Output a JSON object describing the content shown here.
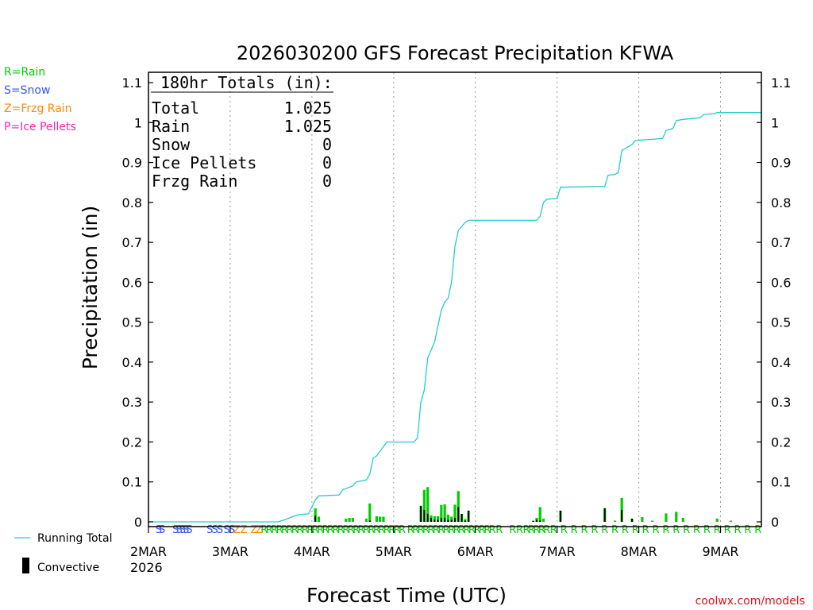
{
  "chart_data": {
    "type": "bar",
    "title": "2026030200 GFS Forecast Precipitation KFWA",
    "ylabel": "Precipitation (in)",
    "xlabel": "Forecast Time (UTC)",
    "x_unit": "hours after 2026-03-02 00Z",
    "xlim": [
      0,
      180
    ],
    "ylim": [
      0,
      1.1
    ],
    "yticks": [
      "0",
      "0.1",
      "0.2",
      "0.3",
      "0.4",
      "0.5",
      "0.6",
      "0.7",
      "0.8",
      "0.9",
      "1",
      "1.1"
    ],
    "xticks": [
      {
        "hour": 0,
        "label": "2MAR"
      },
      {
        "hour": 24,
        "label": "3MAR"
      },
      {
        "hour": 48,
        "label": "4MAR"
      },
      {
        "hour": 72,
        "label": "5MAR"
      },
      {
        "hour": 96,
        "label": "6MAR"
      },
      {
        "hour": 120,
        "label": "7MAR"
      },
      {
        "hour": 144,
        "label": "8MAR"
      },
      {
        "hour": 168,
        "label": "9MAR"
      }
    ],
    "year_label": "2026",
    "legend": [
      {
        "label": "R=Rain",
        "color": "#00cc00"
      },
      {
        "label": "S=Snow",
        "color": "#3355ff"
      },
      {
        "label": "Z=Frzg Rain",
        "color": "#ff8800"
      },
      {
        "label": "P=Ice Pellets",
        "color": "#ff22aa"
      }
    ],
    "series_legend": [
      {
        "label": "Running Total",
        "color": "#22cccc"
      },
      {
        "label": "Convective",
        "color": "#000000"
      }
    ],
    "totals": {
      "header": "180hr Totals (in):",
      "rows": [
        {
          "label": "Total",
          "value": "1.025"
        },
        {
          "label": "Rain",
          "value": "1.025"
        },
        {
          "label": "Snow",
          "value": "0"
        },
        {
          "label": "Ice Pellets",
          "value": "0"
        },
        {
          "label": "Frzg Rain",
          "value": "0"
        }
      ]
    },
    "running_total": [
      [
        0,
        0
      ],
      [
        38,
        0
      ],
      [
        40,
        0.005
      ],
      [
        42,
        0.012
      ],
      [
        44,
        0.018
      ],
      [
        47,
        0.02
      ],
      [
        49,
        0.055
      ],
      [
        50,
        0.065
      ],
      [
        56,
        0.067
      ],
      [
        57,
        0.08
      ],
      [
        60,
        0.09
      ],
      [
        61,
        0.1
      ],
      [
        64,
        0.105
      ],
      [
        65,
        0.12
      ],
      [
        66,
        0.16
      ],
      [
        67,
        0.165
      ],
      [
        70,
        0.2
      ],
      [
        78,
        0.2
      ],
      [
        79,
        0.21
      ],
      [
        80,
        0.3
      ],
      [
        81,
        0.33
      ],
      [
        82,
        0.41
      ],
      [
        84,
        0.45
      ],
      [
        86,
        0.53
      ],
      [
        87,
        0.55
      ],
      [
        88,
        0.56
      ],
      [
        89,
        0.6
      ],
      [
        90,
        0.69
      ],
      [
        91,
        0.73
      ],
      [
        92,
        0.74
      ],
      [
        93,
        0.75
      ],
      [
        94,
        0.755
      ],
      [
        114,
        0.755
      ],
      [
        115,
        0.765
      ],
      [
        116,
        0.8
      ],
      [
        117,
        0.808
      ],
      [
        120,
        0.81
      ],
      [
        121,
        0.838
      ],
      [
        134,
        0.84
      ],
      [
        135,
        0.868
      ],
      [
        137,
        0.87
      ],
      [
        138,
        0.875
      ],
      [
        139,
        0.93
      ],
      [
        141,
        0.94
      ],
      [
        142,
        0.945
      ],
      [
        143,
        0.955
      ],
      [
        151,
        0.96
      ],
      [
        152,
        0.98
      ],
      [
        154,
        0.985
      ],
      [
        155,
        1.005
      ],
      [
        157,
        1.008
      ],
      [
        162,
        1.012
      ],
      [
        163,
        1.02
      ],
      [
        166,
        1.022
      ],
      [
        167,
        1.025
      ],
      [
        180,
        1.025
      ]
    ],
    "bars": [
      {
        "h": 49,
        "total": 0.034,
        "conv": 0.015
      },
      {
        "h": 50,
        "total": 0.013,
        "conv": 0
      },
      {
        "h": 58,
        "total": 0.008,
        "conv": 0
      },
      {
        "h": 59,
        "total": 0.01,
        "conv": 0
      },
      {
        "h": 60,
        "total": 0.01,
        "conv": 0
      },
      {
        "h": 64,
        "total": 0.008,
        "conv": 0
      },
      {
        "h": 65,
        "total": 0.046,
        "conv": 0.003
      },
      {
        "h": 67,
        "total": 0.014,
        "conv": 0
      },
      {
        "h": 68,
        "total": 0.013,
        "conv": 0
      },
      {
        "h": 69,
        "total": 0.013,
        "conv": 0
      },
      {
        "h": 80,
        "total": 0.04,
        "conv": 0.04
      },
      {
        "h": 81,
        "total": 0.08,
        "conv": 0.03
      },
      {
        "h": 82,
        "total": 0.087,
        "conv": 0.02
      },
      {
        "h": 83,
        "total": 0.016,
        "conv": 0.01
      },
      {
        "h": 84,
        "total": 0.014,
        "conv": 0.005
      },
      {
        "h": 85,
        "total": 0.014,
        "conv": 0.005
      },
      {
        "h": 86,
        "total": 0.042,
        "conv": 0.01
      },
      {
        "h": 87,
        "total": 0.044,
        "conv": 0.01
      },
      {
        "h": 88,
        "total": 0.018,
        "conv": 0.005
      },
      {
        "h": 89,
        "total": 0.013,
        "conv": 0.005
      },
      {
        "h": 90,
        "total": 0.043,
        "conv": 0.01
      },
      {
        "h": 91,
        "total": 0.077,
        "conv": 0.037
      },
      {
        "h": 92,
        "total": 0.02,
        "conv": 0.02
      },
      {
        "h": 93,
        "total": 0.007,
        "conv": 0.003
      },
      {
        "h": 94,
        "total": 0.028,
        "conv": 0.028
      },
      {
        "h": 113,
        "total": 0.003,
        "conv": 0.002
      },
      {
        "h": 114,
        "total": 0.01,
        "conv": 0.005
      },
      {
        "h": 115,
        "total": 0.037,
        "conv": 0.003
      },
      {
        "h": 116,
        "total": 0.008,
        "conv": 0
      },
      {
        "h": 121,
        "total": 0.028,
        "conv": 0.028
      },
      {
        "h": 134,
        "total": 0.034,
        "conv": 0.034
      },
      {
        "h": 137,
        "total": 0.003,
        "conv": 0
      },
      {
        "h": 139,
        "total": 0.06,
        "conv": 0.03
      },
      {
        "h": 142,
        "total": 0.008,
        "conv": 0.008
      },
      {
        "h": 145,
        "total": 0.012,
        "conv": 0
      },
      {
        "h": 148,
        "total": 0.003,
        "conv": 0
      },
      {
        "h": 152,
        "total": 0.021,
        "conv": 0
      },
      {
        "h": 155,
        "total": 0.025,
        "conv": 0
      },
      {
        "h": 157,
        "total": 0.01,
        "conv": 0
      },
      {
        "h": 167,
        "total": 0.008,
        "conv": 0
      },
      {
        "h": 171,
        "total": 0.003,
        "conv": 0
      }
    ],
    "ptype_marks": [
      {
        "h": 3,
        "c": "S"
      },
      {
        "h": 4,
        "c": "S"
      },
      {
        "h": 8,
        "c": "S"
      },
      {
        "h": 9,
        "c": "S"
      },
      {
        "h": 10,
        "c": "S"
      },
      {
        "h": 11,
        "c": "S"
      },
      {
        "h": 12,
        "c": "S"
      },
      {
        "h": 18,
        "c": "S"
      },
      {
        "h": 19.5,
        "c": "S"
      },
      {
        "h": 21,
        "c": "S"
      },
      {
        "h": 23,
        "c": "S"
      },
      {
        "h": 24.5,
        "c": "S"
      },
      {
        "h": 26,
        "c": "Z"
      },
      {
        "h": 28,
        "c": "Z"
      },
      {
        "h": 31,
        "c": "Z"
      },
      {
        "h": 32.5,
        "c": "Z"
      },
      {
        "h": 34,
        "c": "R"
      },
      {
        "h": 35.5,
        "c": "R"
      },
      {
        "h": 37,
        "c": "R"
      },
      {
        "h": 38.5,
        "c": "R"
      },
      {
        "h": 40,
        "c": "R"
      },
      {
        "h": 41.5,
        "c": "R"
      },
      {
        "h": 43,
        "c": "R"
      },
      {
        "h": 44.5,
        "c": "R"
      },
      {
        "h": 46,
        "c": "R"
      },
      {
        "h": 47.5,
        "c": "R"
      },
      {
        "h": 49,
        "c": "R"
      },
      {
        "h": 50.5,
        "c": "R"
      },
      {
        "h": 52,
        "c": "R"
      },
      {
        "h": 53.5,
        "c": "R"
      },
      {
        "h": 55,
        "c": "R"
      },
      {
        "h": 56.5,
        "c": "R"
      },
      {
        "h": 58,
        "c": "R"
      },
      {
        "h": 59.5,
        "c": "R"
      },
      {
        "h": 61,
        "c": "R"
      },
      {
        "h": 62.5,
        "c": "R"
      },
      {
        "h": 64,
        "c": "R"
      },
      {
        "h": 65.5,
        "c": "R"
      },
      {
        "h": 67,
        "c": "R"
      },
      {
        "h": 68.5,
        "c": "R"
      },
      {
        "h": 70,
        "c": "R"
      },
      {
        "h": 71.5,
        "c": "R"
      },
      {
        "h": 73,
        "c": "R"
      },
      {
        "h": 74.5,
        "c": "R"
      },
      {
        "h": 77,
        "c": "R"
      },
      {
        "h": 78.5,
        "c": "R"
      },
      {
        "h": 80,
        "c": "R"
      },
      {
        "h": 81.5,
        "c": "R"
      },
      {
        "h": 83,
        "c": "R"
      },
      {
        "h": 84.5,
        "c": "R"
      },
      {
        "h": 86,
        "c": "R"
      },
      {
        "h": 87.5,
        "c": "R"
      },
      {
        "h": 89,
        "c": "R"
      },
      {
        "h": 90.5,
        "c": "R"
      },
      {
        "h": 92,
        "c": "R"
      },
      {
        "h": 93.5,
        "c": "R"
      },
      {
        "h": 95,
        "c": "R"
      },
      {
        "h": 96.5,
        "c": "R"
      },
      {
        "h": 98,
        "c": "R"
      },
      {
        "h": 99.5,
        "c": "R"
      },
      {
        "h": 101,
        "c": "R"
      },
      {
        "h": 103,
        "c": "R"
      },
      {
        "h": 107,
        "c": "R"
      },
      {
        "h": 109,
        "c": "R"
      },
      {
        "h": 111,
        "c": "R"
      },
      {
        "h": 112.5,
        "c": "R"
      },
      {
        "h": 114,
        "c": "R"
      },
      {
        "h": 115.5,
        "c": "R"
      },
      {
        "h": 117,
        "c": "R"
      },
      {
        "h": 119,
        "c": "R"
      },
      {
        "h": 122,
        "c": "R"
      },
      {
        "h": 125,
        "c": "R"
      },
      {
        "h": 128,
        "c": "R"
      },
      {
        "h": 131,
        "c": "R"
      },
      {
        "h": 134,
        "c": "R"
      },
      {
        "h": 137,
        "c": "R"
      },
      {
        "h": 140,
        "c": "R"
      },
      {
        "h": 143,
        "c": "R"
      },
      {
        "h": 146,
        "c": "R"
      },
      {
        "h": 149,
        "c": "R"
      },
      {
        "h": 152,
        "c": "R"
      },
      {
        "h": 155,
        "c": "R"
      },
      {
        "h": 158,
        "c": "R"
      },
      {
        "h": 161,
        "c": "R"
      },
      {
        "h": 164,
        "c": "R"
      },
      {
        "h": 167,
        "c": "R"
      },
      {
        "h": 170,
        "c": "R"
      },
      {
        "h": 173,
        "c": "R"
      },
      {
        "h": 176,
        "c": "R"
      },
      {
        "h": 179,
        "c": "R"
      }
    ],
    "credit": "coolwx.com/models"
  }
}
